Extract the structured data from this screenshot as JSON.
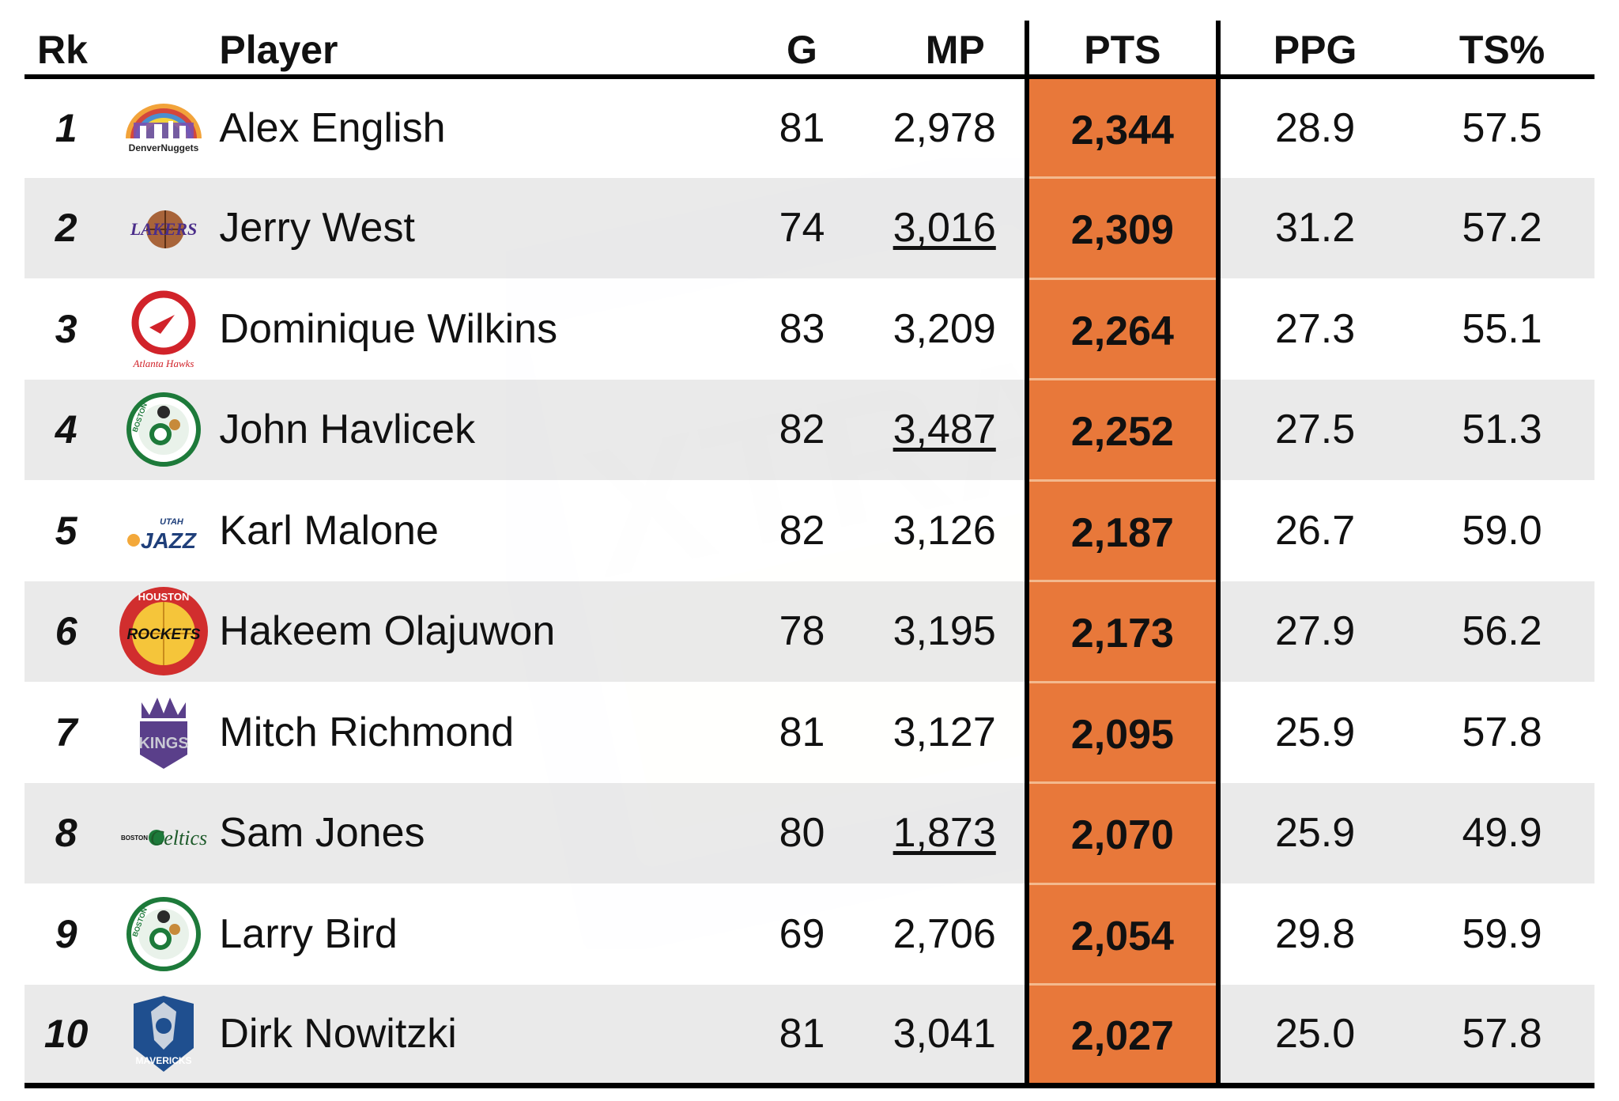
{
  "columns": {
    "rank": "Rk",
    "player": "Player",
    "games": "G",
    "minutes": "MP",
    "points": "PTS",
    "ppg": "PPG",
    "ts": "TS%"
  },
  "colors": {
    "highlight": "#e8783a",
    "stripe": "#e8e8e8",
    "rule": "#000000"
  },
  "rows": [
    {
      "rk": "1",
      "player": "Alex English",
      "team_logo": "denver-nuggets-logo",
      "g": "81",
      "mp": "2,978",
      "mp_underlined": false,
      "pts": "2,344",
      "ppg": "28.9",
      "ts": "57.5"
    },
    {
      "rk": "2",
      "player": "Jerry West",
      "team_logo": "los-angeles-lakers-logo",
      "g": "74",
      "mp": "3,016",
      "mp_underlined": true,
      "pts": "2,309",
      "ppg": "31.2",
      "ts": "57.2"
    },
    {
      "rk": "3",
      "player": "Dominique Wilkins",
      "team_logo": "atlanta-hawks-logo",
      "g": "83",
      "mp": "3,209",
      "mp_underlined": false,
      "pts": "2,264",
      "ppg": "27.3",
      "ts": "55.1"
    },
    {
      "rk": "4",
      "player": "John Havlicek",
      "team_logo": "boston-celtics-logo",
      "g": "82",
      "mp": "3,487",
      "mp_underlined": true,
      "pts": "2,252",
      "ppg": "27.5",
      "ts": "51.3"
    },
    {
      "rk": "5",
      "player": "Karl Malone",
      "team_logo": "utah-jazz-logo",
      "g": "82",
      "mp": "3,126",
      "mp_underlined": false,
      "pts": "2,187",
      "ppg": "26.7",
      "ts": "59.0"
    },
    {
      "rk": "6",
      "player": "Hakeem Olajuwon",
      "team_logo": "houston-rockets-logo",
      "g": "78",
      "mp": "3,195",
      "mp_underlined": false,
      "pts": "2,173",
      "ppg": "27.9",
      "ts": "56.2"
    },
    {
      "rk": "7",
      "player": "Mitch Richmond",
      "team_logo": "sacramento-kings-logo",
      "g": "81",
      "mp": "3,127",
      "mp_underlined": false,
      "pts": "2,095",
      "ppg": "25.9",
      "ts": "57.8"
    },
    {
      "rk": "8",
      "player": "Sam Jones",
      "team_logo": "boston-celtics-wordmark-logo",
      "g": "80",
      "mp": "1,873",
      "mp_underlined": true,
      "pts": "2,070",
      "ppg": "25.9",
      "ts": "49.9"
    },
    {
      "rk": "9",
      "player": "Larry Bird",
      "team_logo": "boston-celtics-logo",
      "g": "69",
      "mp": "2,706",
      "mp_underlined": false,
      "pts": "2,054",
      "ppg": "29.8",
      "ts": "59.9"
    },
    {
      "rk": "10",
      "player": "Dirk Nowitzki",
      "team_logo": "dallas-mavericks-logo",
      "g": "81",
      "mp": "3,041",
      "mp_underlined": false,
      "pts": "2,027",
      "ppg": "25.0",
      "ts": "57.8"
    }
  ],
  "logo_text": {
    "nuggets": "DenverNuggets",
    "hawks": "Atlanta Hawks",
    "jazz": "JAZZ",
    "jazz_small": "UTAH",
    "rockets": "ROCKETS",
    "rockets_top": "HOUSTON",
    "kings": "KINGS",
    "celtics_script": "Celtics",
    "celtics_small": "BOSTON",
    "mavs": "MAVERICKS",
    "lakers": "LAKERS"
  },
  "watermark": "XTRA"
}
